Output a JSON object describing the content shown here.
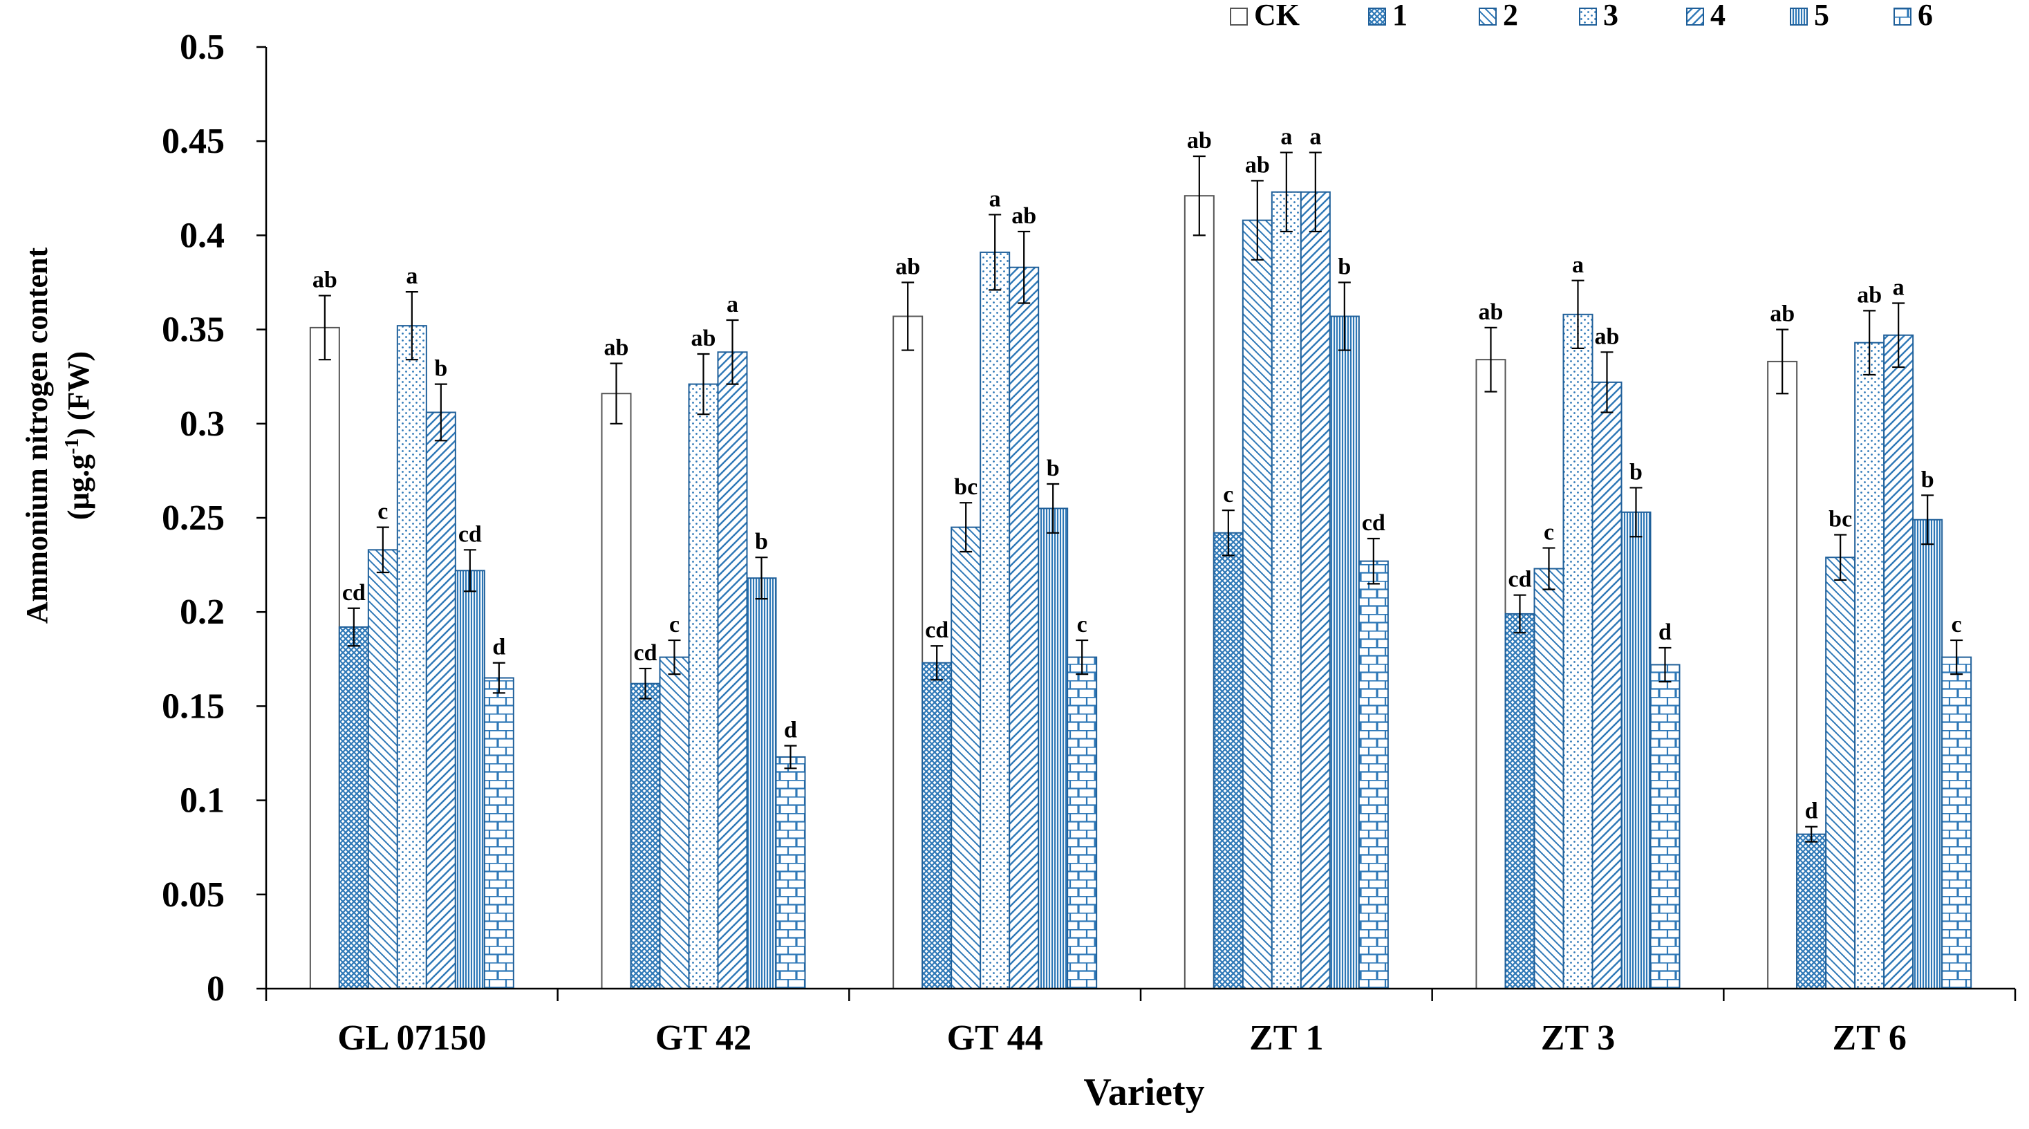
{
  "chart_data": {
    "type": "bar",
    "title": "",
    "xlabel": "Variety",
    "ylabel_line1": "Ammonium nitrogen content",
    "ylabel_line2_prefix": "(µg.g",
    "ylabel_line2_sup": "-1",
    "ylabel_line2_suffix": ") (FW)",
    "ylim": [
      0,
      0.5
    ],
    "yticks": [
      0,
      0.05,
      0.1,
      0.15,
      0.2,
      0.25,
      0.3,
      0.35,
      0.4,
      0.45,
      0.5
    ],
    "ytick_labels": [
      "0",
      "0.05",
      "0.1",
      "0.15",
      "0.2",
      "0.25",
      "0.3",
      "0.35",
      "0.4",
      "0.45",
      "0.5"
    ],
    "legend_position": "top-right",
    "categories": [
      "GL 07150",
      "GT 42",
      "GT 44",
      "ZT 1",
      "ZT 3",
      "ZT 6"
    ],
    "series": [
      {
        "name": "CK",
        "pattern": "blank",
        "values": [
          0.351,
          0.316,
          0.357,
          0.421,
          0.334,
          0.333
        ],
        "errors": [
          0.017,
          0.016,
          0.018,
          0.021,
          0.017,
          0.017
        ],
        "letters": [
          "ab",
          "ab",
          "ab",
          "ab",
          "ab",
          "ab"
        ]
      },
      {
        "name": "1",
        "pattern": "dense-dots",
        "values": [
          0.192,
          0.162,
          0.173,
          0.242,
          0.199,
          0.082
        ],
        "errors": [
          0.01,
          0.008,
          0.009,
          0.012,
          0.01,
          0.004
        ],
        "letters": [
          "cd",
          "cd",
          "cd",
          "c",
          "cd",
          "d"
        ]
      },
      {
        "name": "2",
        "pattern": "back-diagonal",
        "values": [
          0.233,
          0.176,
          0.245,
          0.408,
          0.223,
          0.229
        ],
        "errors": [
          0.012,
          0.009,
          0.013,
          0.021,
          0.011,
          0.012
        ],
        "letters": [
          "c",
          "c",
          "bc",
          "ab",
          "c",
          "bc"
        ]
      },
      {
        "name": "3",
        "pattern": "sparse-dots",
        "values": [
          0.352,
          0.321,
          0.391,
          0.423,
          0.358,
          0.343
        ],
        "errors": [
          0.018,
          0.016,
          0.02,
          0.021,
          0.018,
          0.017
        ],
        "letters": [
          "a",
          "ab",
          "a",
          "a",
          "a",
          "ab"
        ]
      },
      {
        "name": "4",
        "pattern": "forward-diagonal",
        "values": [
          0.306,
          0.338,
          0.383,
          0.423,
          0.322,
          0.347
        ],
        "errors": [
          0.015,
          0.017,
          0.019,
          0.021,
          0.016,
          0.017
        ],
        "letters": [
          "b",
          "a",
          "ab",
          "a",
          "ab",
          "a"
        ]
      },
      {
        "name": "5",
        "pattern": "vertical-lines",
        "values": [
          0.222,
          0.218,
          0.255,
          0.357,
          0.253,
          0.249
        ],
        "errors": [
          0.011,
          0.011,
          0.013,
          0.018,
          0.013,
          0.013
        ],
        "letters": [
          "cd",
          "b",
          "b",
          "b",
          "b",
          "b"
        ]
      },
      {
        "name": "6",
        "pattern": "brick",
        "values": [
          0.165,
          0.123,
          0.176,
          0.227,
          0.172,
          0.176
        ],
        "errors": [
          0.008,
          0.006,
          0.009,
          0.012,
          0.009,
          0.009
        ],
        "letters": [
          "d",
          "d",
          "c",
          "cd",
          "d",
          "c"
        ]
      }
    ],
    "colors": {
      "bar_stroke": "#1f5f99",
      "pattern": "#2e78b7",
      "ck_stroke": "#555555",
      "axis": "#000000"
    }
  }
}
